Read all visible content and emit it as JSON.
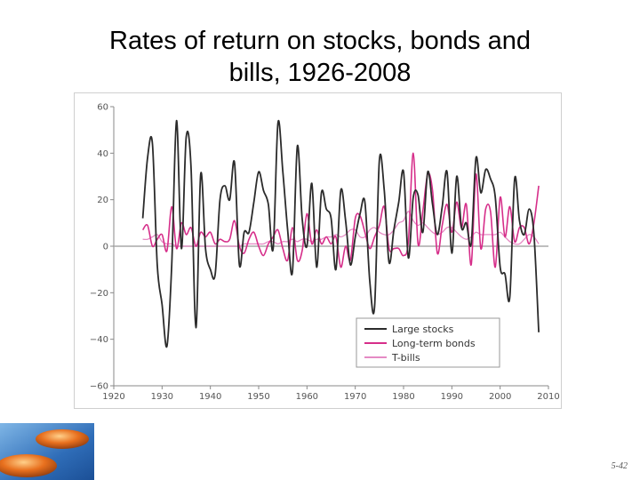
{
  "slide": {
    "title_line1": "Rates of return on stocks, bonds and",
    "title_line2": "bills, 1926-2008",
    "slide_number": "5-42"
  },
  "chart_data": {
    "type": "line",
    "title": "Rates of return on stocks, bonds and bills, 1926-2008",
    "xlabel": "",
    "ylabel": "",
    "xlim": [
      1920,
      2010
    ],
    "ylim": [
      -60,
      60
    ],
    "xticks": [
      1920,
      1930,
      1940,
      1950,
      1960,
      1970,
      1980,
      1990,
      2000,
      2010
    ],
    "yticks": [
      60,
      40,
      20,
      0,
      -20,
      -40,
      -60
    ],
    "grid": false,
    "legend": "bottom-right",
    "series": [
      {
        "name": "Large stocks",
        "color": "#2b2b2b",
        "x": [
          1926,
          1927,
          1928,
          1929,
          1930,
          1931,
          1932,
          1933,
          1934,
          1935,
          1936,
          1937,
          1938,
          1939,
          1940,
          1941,
          1942,
          1943,
          1944,
          1945,
          1946,
          1947,
          1948,
          1949,
          1950,
          1951,
          1952,
          1953,
          1954,
          1955,
          1956,
          1957,
          1958,
          1959,
          1960,
          1961,
          1962,
          1963,
          1964,
          1965,
          1966,
          1967,
          1968,
          1969,
          1970,
          1971,
          1972,
          1973,
          1974,
          1975,
          1976,
          1977,
          1978,
          1979,
          1980,
          1981,
          1982,
          1983,
          1984,
          1985,
          1986,
          1987,
          1988,
          1989,
          1990,
          1991,
          1992,
          1993,
          1994,
          1995,
          1996,
          1997,
          1998,
          1999,
          2000,
          2001,
          2002,
          2003,
          2004,
          2005,
          2006,
          2007,
          2008
        ],
        "y": [
          12,
          38,
          44,
          -8,
          -25,
          -43,
          -8,
          54,
          -1,
          47,
          34,
          -35,
          31,
          -1,
          -10,
          -12,
          20,
          26,
          20,
          36,
          -8,
          6,
          6,
          19,
          32,
          24,
          18,
          -1,
          53,
          32,
          7,
          -11,
          43,
          12,
          0,
          27,
          -9,
          23,
          16,
          12,
          -10,
          24,
          11,
          -8,
          4,
          14,
          19,
          -15,
          -26,
          37,
          24,
          -7,
          7,
          19,
          32,
          -5,
          21,
          22,
          6,
          32,
          18,
          5,
          17,
          32,
          -3,
          30,
          8,
          10,
          1,
          38,
          23,
          33,
          29,
          21,
          -9,
          -12,
          -22,
          29,
          11,
          5,
          16,
          5,
          -37
        ]
      },
      {
        "name": "Long-term bonds",
        "color": "#d62e8a",
        "x": [
          1926,
          1927,
          1928,
          1929,
          1930,
          1931,
          1932,
          1933,
          1934,
          1935,
          1936,
          1937,
          1938,
          1939,
          1940,
          1941,
          1942,
          1943,
          1944,
          1945,
          1946,
          1947,
          1948,
          1949,
          1950,
          1951,
          1952,
          1953,
          1954,
          1955,
          1956,
          1957,
          1958,
          1959,
          1960,
          1961,
          1962,
          1963,
          1964,
          1965,
          1966,
          1967,
          1968,
          1969,
          1970,
          1971,
          1972,
          1973,
          1974,
          1975,
          1976,
          1977,
          1978,
          1979,
          1980,
          1981,
          1982,
          1983,
          1984,
          1985,
          1986,
          1987,
          1988,
          1989,
          1990,
          1991,
          1992,
          1993,
          1994,
          1995,
          1996,
          1997,
          1998,
          1999,
          2000,
          2001,
          2002,
          2003,
          2004,
          2005,
          2006,
          2007,
          2008
        ],
        "y": [
          7,
          9,
          0,
          3,
          5,
          -2,
          17,
          -1,
          10,
          5,
          8,
          0,
          6,
          4,
          6,
          1,
          3,
          2,
          3,
          11,
          0,
          -3,
          3,
          6,
          0,
          -4,
          1,
          4,
          7,
          -1,
          -6,
          8,
          -6,
          -2,
          14,
          1,
          7,
          1,
          4,
          1,
          4,
          -9,
          0,
          -6,
          12,
          13,
          6,
          -1,
          4,
          9,
          17,
          -1,
          -1,
          -1,
          -4,
          2,
          40,
          1,
          15,
          31,
          24,
          -3,
          9,
          18,
          6,
          19,
          8,
          18,
          -8,
          31,
          -1,
          16,
          15,
          -9,
          21,
          4,
          17,
          2,
          8,
          8,
          1,
          10,
          26
        ]
      },
      {
        "name": "T-bills",
        "color": "#e58ac4",
        "x": [
          1926,
          1927,
          1928,
          1929,
          1930,
          1931,
          1932,
          1933,
          1934,
          1935,
          1936,
          1937,
          1938,
          1939,
          1940,
          1941,
          1942,
          1943,
          1944,
          1945,
          1946,
          1947,
          1948,
          1949,
          1950,
          1951,
          1952,
          1953,
          1954,
          1955,
          1956,
          1957,
          1958,
          1959,
          1960,
          1961,
          1962,
          1963,
          1964,
          1965,
          1966,
          1967,
          1968,
          1969,
          1970,
          1971,
          1972,
          1973,
          1974,
          1975,
          1976,
          1977,
          1978,
          1979,
          1980,
          1981,
          1982,
          1983,
          1984,
          1985,
          1986,
          1987,
          1988,
          1989,
          1990,
          1991,
          1992,
          1993,
          1994,
          1995,
          1996,
          1997,
          1998,
          1999,
          2000,
          2001,
          2002,
          2003,
          2004,
          2005,
          2006,
          2007,
          2008
        ],
        "y": [
          3,
          3,
          4,
          5,
          2,
          1,
          1,
          0,
          0,
          0,
          0,
          0,
          0,
          0,
          0,
          0,
          0,
          0,
          0,
          0,
          0,
          1,
          1,
          1,
          1,
          1,
          2,
          2,
          1,
          2,
          2,
          3,
          2,
          3,
          3,
          2,
          3,
          3,
          4,
          4,
          5,
          4,
          5,
          7,
          7,
          4,
          4,
          7,
          8,
          6,
          5,
          5,
          7,
          10,
          11,
          15,
          11,
          9,
          10,
          8,
          6,
          5,
          6,
          8,
          8,
          6,
          4,
          3,
          4,
          6,
          5,
          5,
          5,
          5,
          6,
          4,
          2,
          1,
          1,
          3,
          5,
          4,
          1
        ]
      }
    ]
  }
}
